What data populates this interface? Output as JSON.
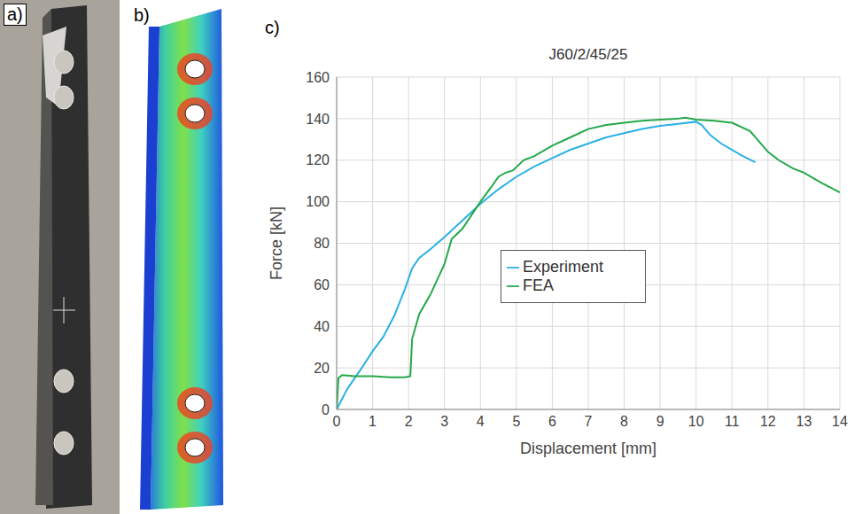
{
  "panel_labels": [
    "a)",
    "b)",
    "c)"
  ],
  "chart_data": {
    "type": "line",
    "title": "J60/2/45/25",
    "x_label": "Displacement [mm]",
    "y_label": "Force [kN]",
    "xlim": [
      0,
      14
    ],
    "xticks": [
      0,
      1,
      2,
      3,
      4,
      5,
      6,
      7,
      8,
      9,
      10,
      11,
      12,
      13,
      14
    ],
    "ylim": [
      0,
      160
    ],
    "yticks": [
      0,
      20,
      40,
      60,
      80,
      100,
      120,
      140,
      160
    ],
    "grid": true,
    "legend": "center",
    "series": [
      {
        "name": "Experiment",
        "color": "#2bb0e4",
        "x": [
          0,
          0.3,
          0.7,
          1,
          1.3,
          1.6,
          1.9,
          2.1,
          2.3,
          2.6,
          3,
          3.5,
          4,
          4.5,
          5,
          5.5,
          6,
          6.5,
          7,
          7.5,
          8,
          8.5,
          9,
          9.5,
          10,
          10.15,
          10.4,
          10.7,
          11,
          11.3,
          11.65
        ],
        "values": [
          0,
          10,
          20,
          28,
          35,
          45,
          58,
          68,
          73,
          77,
          83,
          91,
          99,
          106,
          112,
          117,
          121,
          125,
          128,
          131,
          133,
          135,
          136.5,
          137.5,
          138.5,
          137,
          132,
          128,
          125,
          122,
          119
        ]
      },
      {
        "name": "FEA",
        "color": "#24a84b",
        "x": [
          0,
          0.05,
          0.15,
          0.5,
          1,
          1.5,
          1.9,
          2.05,
          2.1,
          2.2,
          2.3,
          2.6,
          3,
          3.2,
          3.5,
          4,
          4.3,
          4.5,
          4.7,
          4.9,
          5.2,
          5.5,
          6,
          6.5,
          7,
          7.5,
          8,
          8.5,
          9,
          9.5,
          9.7,
          10,
          10.5,
          11,
          11.5,
          12,
          12.3,
          12.7,
          13,
          13.5,
          14
        ],
        "values": [
          0,
          15,
          16.5,
          16,
          16,
          15.5,
          15.5,
          16,
          34,
          40,
          46,
          55,
          70,
          82,
          87,
          100,
          107,
          112,
          114,
          115,
          120,
          122,
          127,
          131,
          135,
          137,
          138,
          139,
          139.5,
          140,
          140.5,
          139.5,
          139,
          138,
          134,
          124,
          120,
          116,
          114,
          109,
          104.5
        ]
      }
    ]
  }
}
